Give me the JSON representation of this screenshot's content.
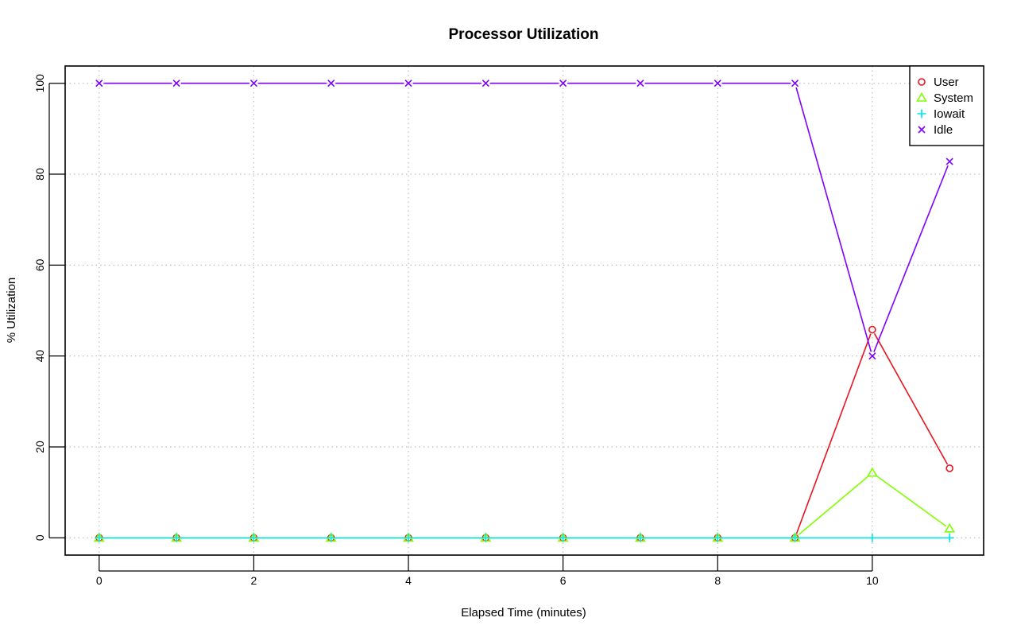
{
  "chart_data": {
    "type": "line",
    "title": "Processor Utilization",
    "xlabel": "Elapsed Time (minutes)",
    "ylabel": "% Utilization",
    "x": [
      0,
      1,
      2,
      3,
      4,
      5,
      6,
      7,
      8,
      9,
      10,
      11
    ],
    "xlim": [
      -0.44,
      11.44
    ],
    "ylim": [
      -3.8,
      103.8
    ],
    "x_ticks": [
      0,
      2,
      4,
      6,
      8,
      10
    ],
    "y_ticks": [
      0,
      20,
      40,
      60,
      80,
      100
    ],
    "grid": true,
    "legend_position": "top-right",
    "series": [
      {
        "name": "User",
        "color": "#e8141e",
        "marker": "circle",
        "values": [
          0,
          0,
          0,
          0,
          0,
          0,
          0,
          0,
          0,
          0,
          45.8,
          15.3
        ]
      },
      {
        "name": "System",
        "color": "#80ff00",
        "marker": "triangle",
        "values": [
          0,
          0,
          0,
          0,
          0,
          0,
          0,
          0,
          0,
          0,
          14.3,
          2.0
        ]
      },
      {
        "name": "Iowait",
        "color": "#00e5e5",
        "marker": "plus",
        "values": [
          0,
          0,
          0,
          0,
          0,
          0,
          0,
          0,
          0,
          0,
          0,
          0
        ]
      },
      {
        "name": "Idle",
        "color": "#8000ff",
        "marker": "cross",
        "values": [
          100,
          100,
          100,
          100,
          100,
          100,
          100,
          100,
          100,
          100,
          40.0,
          82.8
        ]
      }
    ]
  }
}
